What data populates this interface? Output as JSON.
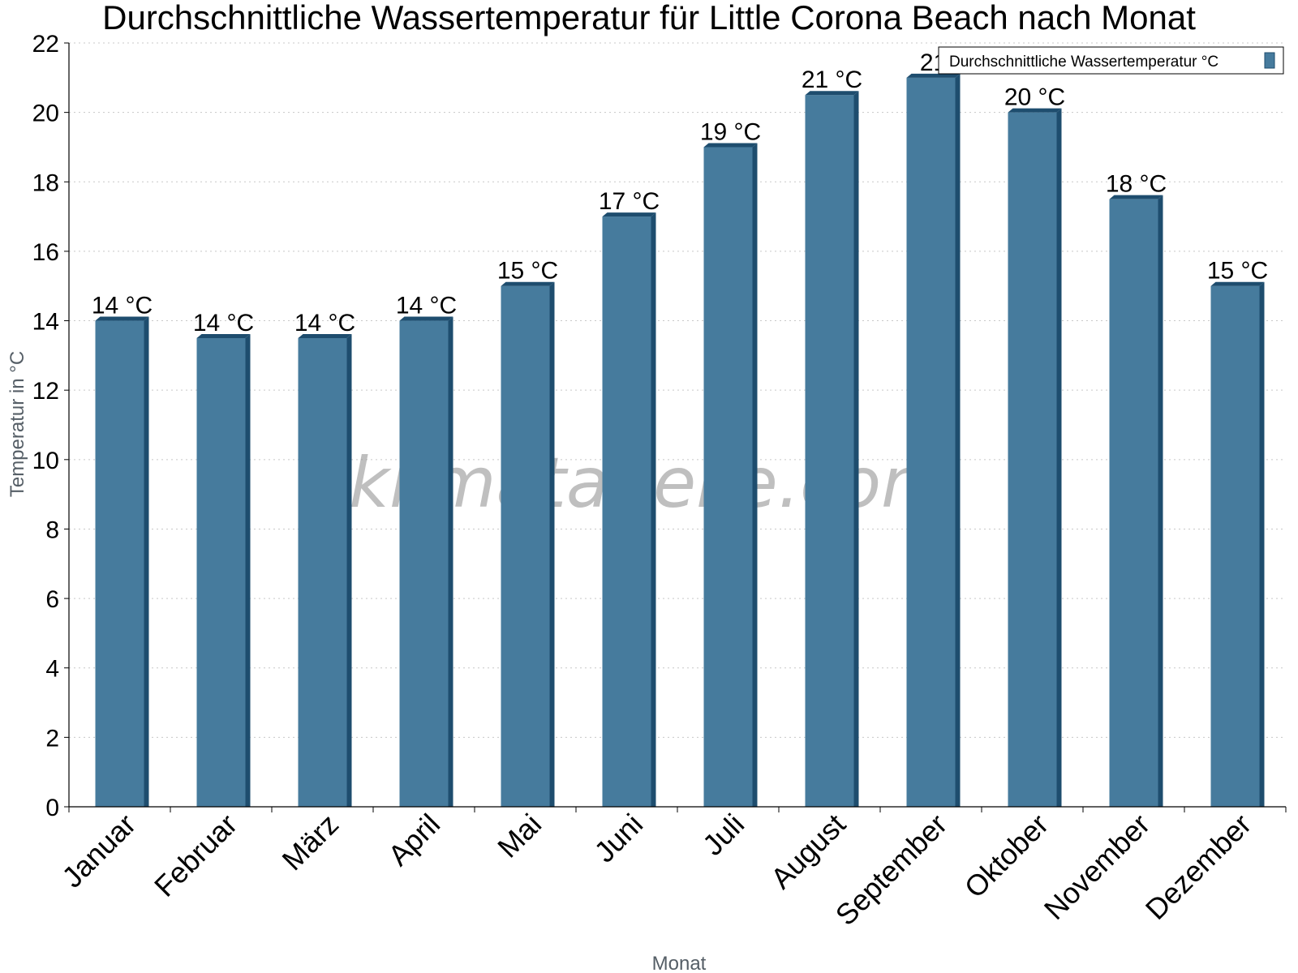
{
  "chart_data": {
    "type": "bar",
    "title": "Durchschnittliche Wassertemperatur für Little Corona Beach nach Monat",
    "xlabel": "Monat",
    "ylabel": "Temperatur in °C",
    "categories": [
      "Januar",
      "Februar",
      "März",
      "April",
      "Mai",
      "Juni",
      "Juli",
      "August",
      "September",
      "Oktober",
      "November",
      "Dezember"
    ],
    "series": [
      {
        "name": "Durchschnittliche Wassertemperatur °C",
        "values": [
          14,
          13.5,
          13.5,
          14,
          15,
          17,
          19,
          20.5,
          21,
          20,
          17.5,
          15
        ],
        "labels": [
          "14 °C",
          "14 °C",
          "14 °C",
          "14 °C",
          "15 °C",
          "17 °C",
          "19 °C",
          "21 °C",
          "21",
          "20 °C",
          "18 °C",
          "15 °C"
        ],
        "color": "#467b9d"
      }
    ],
    "ylim": [
      0,
      22
    ],
    "yticks": [
      0,
      2,
      4,
      6,
      8,
      10,
      12,
      14,
      16,
      18,
      20,
      22
    ],
    "grid": true,
    "legend": "top-right"
  },
  "watermark": "klimatabelle.com",
  "colors": {
    "bar": "#467b9d",
    "bar_side": "#1e4d6e",
    "grid": "#c8c8c8"
  }
}
